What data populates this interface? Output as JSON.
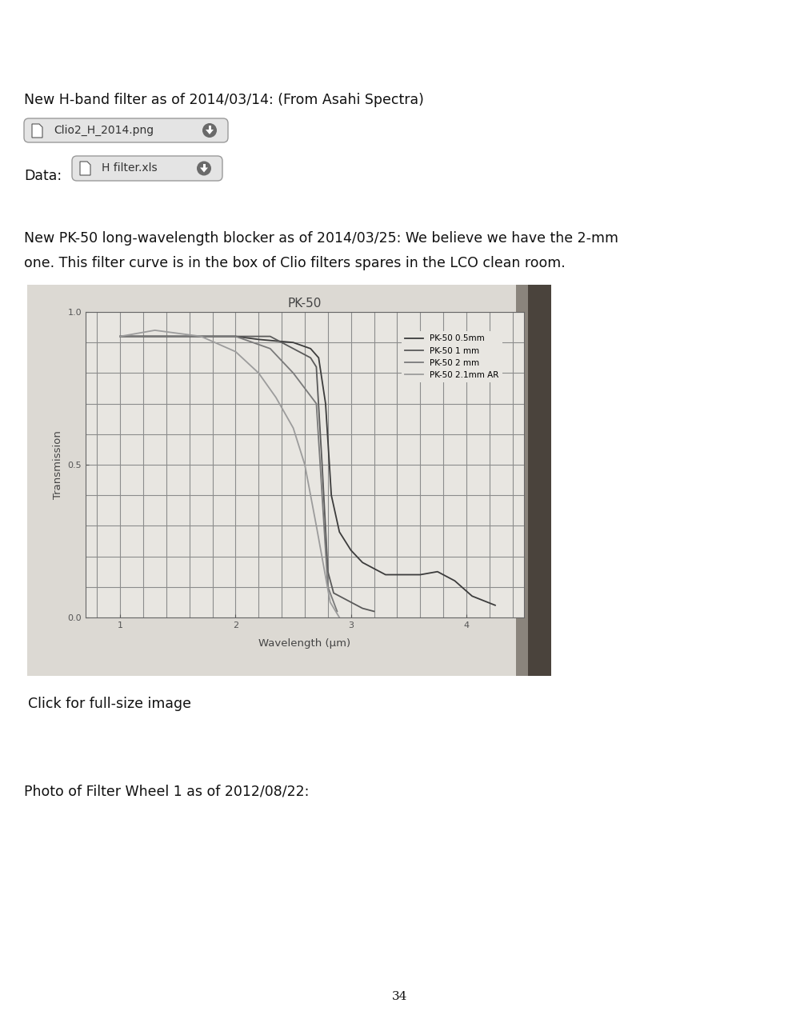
{
  "document": {
    "h_band": {
      "text": "New H-band filter as of 2014/03/14: (From Asahi Spectra)",
      "attachment": "Clio2_H_2014.png"
    },
    "data_line": {
      "text": "Data:",
      "attachment": "H filter.xls"
    },
    "pk50": {
      "lines": [
        "New PK-50 long-wavelength blocker as of 2014/03/25: We believe we have the 2-mm",
        "one. This filter curve is in the box of Clio filters spares in the LCO clean room."
      ]
    },
    "caption": "Click for full-size image",
    "photo_note": "Photo of Filter Wheel 1 as of 2012/08/22:",
    "page_number": "34"
  },
  "chart_data": {
    "type": "line",
    "title": "PK-50",
    "x_label": "Wavelength (μm)",
    "y_label": "Transmission",
    "xlim": [
      0.7,
      4.5
    ],
    "ylim": [
      0,
      1.0
    ],
    "xticks": [
      1,
      2,
      3,
      4
    ],
    "yticks": [
      {
        "value": 0,
        "label": "0.0"
      },
      {
        "value": 0.5,
        "label": "0.5"
      },
      {
        "value": 1.0,
        "label": "1.0"
      }
    ],
    "grid": true,
    "legend": "upper right",
    "series": [
      {
        "name": "PK-50 0.5mm",
        "color": "#3c3c3c",
        "x": [
          1.0,
          1.5,
          2.0,
          2.2,
          2.5,
          2.65,
          2.72,
          2.78,
          2.83,
          2.9,
          3.0,
          3.1,
          3.3,
          3.6,
          3.75,
          3.9,
          4.05,
          4.25
        ],
        "values": [
          0.92,
          0.92,
          0.92,
          0.91,
          0.9,
          0.88,
          0.85,
          0.7,
          0.4,
          0.28,
          0.22,
          0.18,
          0.14,
          0.14,
          0.15,
          0.12,
          0.07,
          0.04
        ]
      },
      {
        "name": "PK-50 1 mm",
        "color": "#5a5a5a",
        "x": [
          1.0,
          1.5,
          2.0,
          2.3,
          2.5,
          2.65,
          2.7,
          2.75,
          2.8,
          2.85,
          2.95,
          3.1,
          3.2
        ],
        "values": [
          0.92,
          0.92,
          0.92,
          0.92,
          0.88,
          0.85,
          0.82,
          0.5,
          0.15,
          0.08,
          0.06,
          0.03,
          0.02
        ]
      },
      {
        "name": "PK-50 2 mm",
        "color": "#7a7a7a",
        "x": [
          1.0,
          1.5,
          2.0,
          2.3,
          2.5,
          2.6,
          2.7,
          2.75,
          2.8,
          2.88
        ],
        "values": [
          0.92,
          0.92,
          0.92,
          0.88,
          0.8,
          0.75,
          0.7,
          0.4,
          0.1,
          0.02
        ]
      },
      {
        "name": "PK-50 2.1mm AR",
        "color": "#9c9c9c",
        "x": [
          1.0,
          1.3,
          1.7,
          2.0,
          2.2,
          2.35,
          2.5,
          2.6,
          2.7,
          2.82,
          2.9
        ],
        "values": [
          0.92,
          0.94,
          0.92,
          0.87,
          0.8,
          0.72,
          0.62,
          0.5,
          0.3,
          0.05,
          0.0
        ]
      }
    ]
  }
}
